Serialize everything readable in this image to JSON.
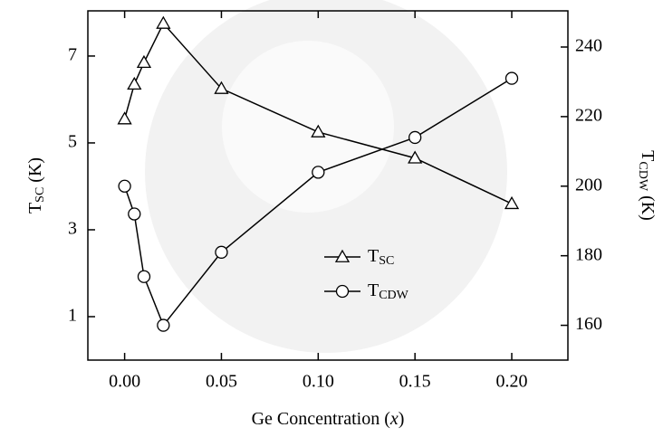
{
  "chart_data": {
    "type": "line",
    "x_label": {
      "parts": [
        "Ge Concentration (",
        "x",
        ")"
      ]
    },
    "y_label": {
      "main": "T",
      "sub": "SC",
      "rest": " (K)"
    },
    "y2_label": {
      "main": "T",
      "sub": "CDW",
      "rest": " (K)"
    },
    "x": [
      0,
      0.005,
      0.01,
      0.02,
      0.05,
      0.1,
      0.15,
      0.2
    ],
    "xlim": [
      -0.019,
      0.229
    ],
    "xticks": [
      {
        "value": 0,
        "label": "0.00"
      },
      {
        "value": 0.05,
        "label": "0.05"
      },
      {
        "value": 0.1,
        "label": "0.10"
      },
      {
        "value": 0.15,
        "label": "0.15"
      },
      {
        "value": 0.2,
        "label": "0.20"
      }
    ],
    "ylim": [
      0,
      8.04
    ],
    "yticks": [
      1,
      3,
      5,
      7
    ],
    "y2lim": [
      150,
      250.4
    ],
    "y2ticks": [
      160,
      180,
      200,
      220,
      240
    ],
    "series": [
      {
        "name": "T",
        "name_sub": "SC",
        "color": "#000000",
        "marker": "triangle",
        "axis": "y",
        "values": [
          5.55,
          6.35,
          6.85,
          7.75,
          6.25,
          5.25,
          4.65,
          3.6
        ]
      },
      {
        "name": "T",
        "name_sub": "CDW",
        "color": "#000000",
        "marker": "circle",
        "axis": "y2",
        "values": [
          200,
          192,
          174,
          160,
          181,
          204,
          214,
          231
        ]
      }
    ]
  }
}
